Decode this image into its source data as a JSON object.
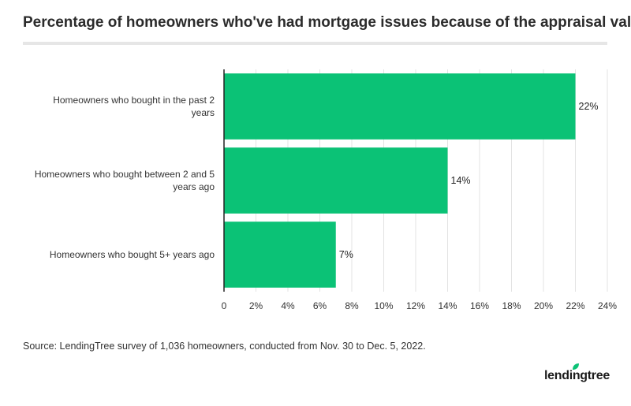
{
  "header": {
    "title": "Percentage of homeowners who've had mortgage issues because of the appraisal value"
  },
  "chart_data": {
    "type": "bar",
    "orientation": "horizontal",
    "categories": [
      [
        "Homeowners who bought in the past 2",
        "years"
      ],
      [
        "Homeowners who bought between 2 and 5",
        "years ago"
      ],
      [
        "Homeowners who bought 5+ years ago"
      ]
    ],
    "values": [
      22,
      14,
      7
    ],
    "value_labels": [
      "22%",
      "14%",
      "7%"
    ],
    "xlim": [
      0,
      24
    ],
    "ticks": [
      {
        "value": 0,
        "label": "0"
      },
      {
        "value": 2,
        "label": "2%"
      },
      {
        "value": 4,
        "label": "4%"
      },
      {
        "value": 6,
        "label": "6%"
      },
      {
        "value": 8,
        "label": "8%"
      },
      {
        "value": 10,
        "label": "10%"
      },
      {
        "value": 12,
        "label": "12%"
      },
      {
        "value": 14,
        "label": "14%"
      },
      {
        "value": 16,
        "label": "16%"
      },
      {
        "value": 18,
        "label": "18%"
      },
      {
        "value": 20,
        "label": "20%"
      },
      {
        "value": 22,
        "label": "22%"
      },
      {
        "value": 24,
        "label": "24%"
      }
    ],
    "bar_color": "#0bc276",
    "grid": true
  },
  "footer": {
    "source": "Source: LendingTree survey of 1,036 homeowners, conducted from Nov. 30 to Dec. 5, 2022.",
    "logo_text": "lendingtree",
    "logo_icon": "leaf-icon",
    "logo_color": "#0bc276"
  }
}
